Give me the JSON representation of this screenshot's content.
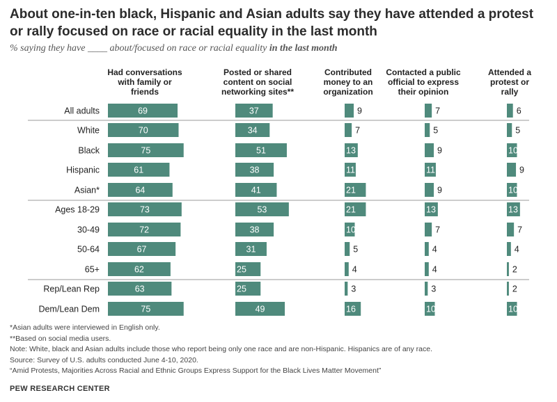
{
  "title": "About one-in-ten black, Hispanic and Asian adults say they have attended a protest or rally focused on race or racial equality in the last month",
  "subtitle": {
    "prefix": "% saying they have ____ about/focused on race or racial equality ",
    "emphasis": "in the last month"
  },
  "notes": [
    "*Asian adults were interviewed in English only.",
    "**Based on social media users.",
    "Note: White, black and Asian adults include those who report being only one race and are non-Hispanic. Hispanics are of any race.",
    "Source: Survey of U.S. adults conducted June 4-10, 2020.",
    "“Amid Protests, Majorities Across Racial and Ethnic Groups Express Support for the Black Lives Matter Movement”"
  ],
  "brand": "PEW RESEARCH CENTER",
  "colors": {
    "bar": "#4f8a7c",
    "bar_text": "#ffffff",
    "divider": "#9a9a9a"
  },
  "chart_data": {
    "type": "bar",
    "orientation": "horizontal",
    "categories": [
      "All adults",
      "White",
      "Black",
      "Hispanic",
      "Asian*",
      "Ages 18-29",
      "30-49",
      "50-64",
      "65+",
      "Rep/Lean Rep",
      "Dem/Lean Dem"
    ],
    "series": [
      {
        "name": "Had conversations with family or friends",
        "values": [
          69,
          70,
          75,
          61,
          64,
          73,
          72,
          67,
          62,
          63,
          75
        ]
      },
      {
        "name": "Posted or shared content on social networking sites**",
        "values": [
          37,
          34,
          51,
          38,
          41,
          53,
          38,
          31,
          25,
          25,
          49
        ]
      },
      {
        "name": "Contributed money to an organization",
        "values": [
          9,
          7,
          13,
          11,
          21,
          21,
          10,
          5,
          4,
          3,
          16
        ]
      },
      {
        "name": "Contacted a public official to express their opinion",
        "values": [
          7,
          5,
          9,
          11,
          9,
          13,
          7,
          4,
          4,
          3,
          10
        ]
      },
      {
        "name": "Attended a protest or rally",
        "values": [
          6,
          5,
          10,
          9,
          10,
          13,
          7,
          4,
          2,
          2,
          10
        ]
      }
    ],
    "groups_after": [
      0,
      4,
      8
    ],
    "legend": "column-headers"
  }
}
